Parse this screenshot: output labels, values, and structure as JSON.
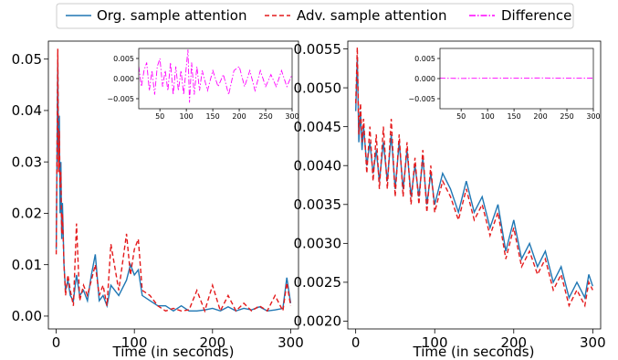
{
  "legend": {
    "placement": "top-center",
    "entries": [
      {
        "label": "Org. sample attention",
        "color": "#1f77b4",
        "dash": "solid"
      },
      {
        "label": "Adv. sample attention",
        "color": "#e41a1c",
        "dash": "dashed"
      },
      {
        "label": "Difference",
        "color": "#ff00ff",
        "dash": "dashdot"
      }
    ]
  },
  "chart_data": [
    {
      "type": "line",
      "xlabel": "Time (in seconds)",
      "ylabel": "",
      "xlim": [
        -10,
        310
      ],
      "ylim": [
        -0.0025,
        0.0535
      ],
      "xticks": [
        0,
        100,
        200,
        300
      ],
      "yticks": [
        0.0,
        0.01,
        0.02,
        0.03,
        0.04,
        0.05
      ],
      "ytick_labels": [
        "0.00",
        "0.01",
        "0.02",
        "0.03",
        "0.04",
        "0.05"
      ],
      "series": [
        {
          "name": "Org. sample attention",
          "color": "#1f77b4",
          "x": [
            0,
            2,
            3,
            4,
            5,
            6,
            7,
            8,
            10,
            12,
            15,
            18,
            22,
            26,
            30,
            35,
            40,
            45,
            50,
            55,
            60,
            65,
            70,
            80,
            90,
            95,
            100,
            105,
            110,
            120,
            130,
            140,
            150,
            160,
            170,
            180,
            190,
            200,
            210,
            220,
            230,
            240,
            250,
            260,
            270,
            280,
            290,
            295,
            300
          ],
          "values": [
            0.013,
            0.05,
            0.03,
            0.039,
            0.02,
            0.03,
            0.015,
            0.022,
            0.01,
            0.005,
            0.007,
            0.004,
            0.003,
            0.008,
            0.004,
            0.005,
            0.003,
            0.008,
            0.012,
            0.003,
            0.004,
            0.002,
            0.006,
            0.004,
            0.007,
            0.01,
            0.008,
            0.009,
            0.004,
            0.003,
            0.002,
            0.002,
            0.001,
            0.002,
            0.001,
            0.001,
            0.0012,
            0.0015,
            0.001,
            0.0018,
            0.001,
            0.0015,
            0.0012,
            0.0018,
            0.001,
            0.0012,
            0.0015,
            0.0075,
            0.0025
          ]
        },
        {
          "name": "Adv. sample attention",
          "color": "#e41a1c",
          "x": [
            0,
            2,
            3,
            4,
            5,
            6,
            7,
            8,
            10,
            12,
            15,
            18,
            22,
            26,
            30,
            35,
            40,
            45,
            50,
            55,
            60,
            65,
            70,
            80,
            90,
            95,
            100,
            105,
            110,
            120,
            130,
            140,
            150,
            160,
            170,
            180,
            190,
            200,
            210,
            220,
            230,
            240,
            250,
            260,
            270,
            280,
            290,
            295,
            300
          ],
          "values": [
            0.012,
            0.052,
            0.028,
            0.036,
            0.025,
            0.028,
            0.016,
            0.02,
            0.01,
            0.004,
            0.008,
            0.005,
            0.002,
            0.018,
            0.003,
            0.006,
            0.004,
            0.007,
            0.01,
            0.004,
            0.006,
            0.002,
            0.014,
            0.005,
            0.016,
            0.008,
            0.013,
            0.015,
            0.005,
            0.004,
            0.002,
            0.001,
            0.0015,
            0.001,
            0.0012,
            0.005,
            0.001,
            0.006,
            0.001,
            0.004,
            0.001,
            0.0025,
            0.001,
            0.002,
            0.001,
            0.004,
            0.001,
            0.0065,
            0.002
          ]
        }
      ]
    },
    {
      "type": "line",
      "xlabel": "Time (in seconds)",
      "ylabel": "",
      "xlim": [
        -10,
        310
      ],
      "ylim": [
        0.0019,
        0.0056
      ],
      "xticks": [
        0,
        100,
        200,
        300
      ],
      "yticks": [
        0.002,
        0.0025,
        0.003,
        0.0035,
        0.004,
        0.0045,
        0.005,
        0.0055
      ],
      "ytick_labels": [
        "0.0020",
        "0.0025",
        "0.0030",
        "0.0035",
        "0.0040",
        "0.0045",
        "0.0050",
        "0.0055"
      ],
      "series": [
        {
          "name": "Org. sample attention",
          "color": "#1f77b4",
          "x": [
            0,
            2,
            4,
            6,
            8,
            10,
            14,
            18,
            22,
            26,
            30,
            35,
            40,
            45,
            50,
            55,
            60,
            65,
            70,
            75,
            80,
            85,
            90,
            95,
            100,
            110,
            120,
            130,
            140,
            150,
            160,
            170,
            180,
            190,
            200,
            210,
            220,
            230,
            240,
            250,
            260,
            270,
            280,
            290,
            295,
            300
          ],
          "values": [
            0.0047,
            0.0054,
            0.0043,
            0.0047,
            0.0042,
            0.0045,
            0.004,
            0.0043,
            0.0039,
            0.0042,
            0.0038,
            0.0043,
            0.0038,
            0.0044,
            0.0037,
            0.0043,
            0.0037,
            0.0042,
            0.0036,
            0.004,
            0.0036,
            0.0041,
            0.0035,
            0.0039,
            0.0035,
            0.0039,
            0.0037,
            0.0034,
            0.0038,
            0.0034,
            0.0036,
            0.0032,
            0.0035,
            0.0029,
            0.0033,
            0.0028,
            0.003,
            0.0027,
            0.0029,
            0.0025,
            0.0027,
            0.0023,
            0.0025,
            0.0023,
            0.0026,
            0.00245
          ]
        },
        {
          "name": "Adv. sample attention",
          "color": "#e41a1c",
          "x": [
            0,
            2,
            4,
            6,
            8,
            10,
            14,
            18,
            22,
            26,
            30,
            35,
            40,
            45,
            50,
            55,
            60,
            65,
            70,
            75,
            80,
            85,
            90,
            95,
            100,
            110,
            120,
            130,
            140,
            150,
            160,
            170,
            180,
            190,
            200,
            210,
            220,
            230,
            240,
            250,
            260,
            270,
            280,
            290,
            295,
            300
          ],
          "values": [
            0.0048,
            0.00552,
            0.0044,
            0.0048,
            0.0043,
            0.0046,
            0.0039,
            0.0045,
            0.0038,
            0.0044,
            0.0037,
            0.0045,
            0.0037,
            0.0046,
            0.0036,
            0.0044,
            0.0036,
            0.0043,
            0.0035,
            0.0041,
            0.0035,
            0.0042,
            0.0034,
            0.004,
            0.0034,
            0.0038,
            0.0036,
            0.0033,
            0.0037,
            0.0033,
            0.0035,
            0.0031,
            0.0034,
            0.0028,
            0.0032,
            0.0027,
            0.0029,
            0.0026,
            0.0028,
            0.0024,
            0.0026,
            0.0022,
            0.0024,
            0.0022,
            0.0025,
            0.0024
          ]
        }
      ],
      "inset": {}
    }
  ],
  "insets": [
    {
      "type": "line",
      "xlim": [
        10,
        300
      ],
      "ylim": [
        -0.0075,
        0.0075
      ],
      "xticks": [
        50,
        100,
        150,
        200,
        250,
        300
      ],
      "yticks": [
        -0.005,
        0.0,
        0.005
      ],
      "ytick_labels": [
        "−0.005",
        "0.000",
        "0.005"
      ],
      "series": [
        {
          "name": "Difference",
          "color": "#ff00ff",
          "x": [
            10,
            15,
            20,
            25,
            30,
            35,
            40,
            45,
            50,
            55,
            60,
            65,
            70,
            75,
            80,
            85,
            90,
            95,
            100,
            103,
            106,
            110,
            115,
            120,
            125,
            130,
            140,
            150,
            160,
            170,
            180,
            190,
            200,
            210,
            220,
            230,
            240,
            250,
            260,
            270,
            280,
            290,
            300
          ],
          "values": [
            0.003,
            -0.002,
            0.002,
            0.004,
            -0.003,
            0.002,
            -0.004,
            0.003,
            0.005,
            -0.002,
            0.002,
            -0.003,
            0.004,
            -0.004,
            0.003,
            -0.003,
            0.002,
            -0.004,
            0.003,
            0.0072,
            -0.006,
            0.004,
            -0.004,
            0.003,
            -0.003,
            0.002,
            -0.003,
            0.002,
            -0.002,
            0.001,
            -0.004,
            0.002,
            0.003,
            -0.002,
            0.002,
            -0.003,
            0.002,
            -0.002,
            0.001,
            -0.002,
            0.002,
            -0.002,
            0.001
          ]
        }
      ]
    },
    {
      "type": "line",
      "xlim": [
        10,
        300
      ],
      "ylim": [
        -0.0075,
        0.0075
      ],
      "xticks": [
        50,
        100,
        150,
        200,
        250,
        300
      ],
      "yticks": [
        -0.005,
        0.0,
        0.005
      ],
      "ytick_labels": [
        "−0.005",
        "0.000",
        "0.005"
      ],
      "series": [
        {
          "name": "Difference",
          "color": "#ff00ff",
          "x": [
            10,
            50,
            100,
            150,
            200,
            250,
            300
          ],
          "values": [
            0.0001,
            5e-05,
            0.0001,
            8e-05,
            0.00015,
            0.0001,
            0.00012
          ]
        }
      ]
    }
  ]
}
